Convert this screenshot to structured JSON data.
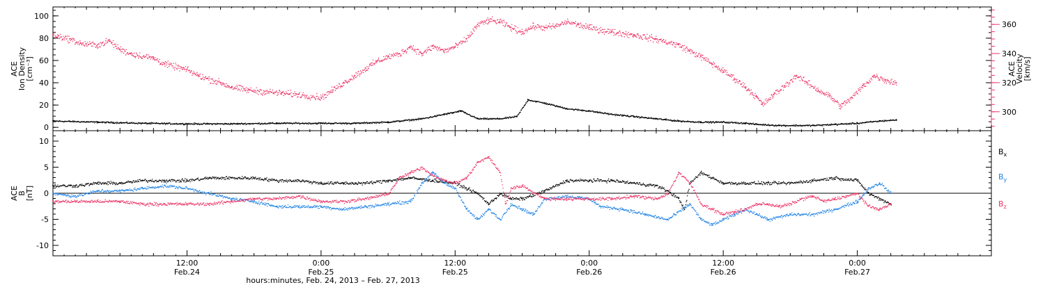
{
  "figure": {
    "xlabel": "hours:minutes, Feb. 24, 2013 – Feb. 27, 2013",
    "x_range_hours": [
      0,
      84
    ],
    "x_ticks": [
      {
        "hour": 12,
        "time": "12:00",
        "date": "Feb.24"
      },
      {
        "hour": 24,
        "time": "0:00",
        "date": "Feb.25"
      },
      {
        "hour": 36,
        "time": "12:00",
        "date": "Feb.25"
      },
      {
        "hour": 48,
        "time": "0:00",
        "date": "Feb.26"
      },
      {
        "hour": 60,
        "time": "12:00",
        "date": "Feb.26"
      },
      {
        "hour": 72,
        "time": "0:00",
        "date": "Feb.27"
      }
    ],
    "colors": {
      "black": "#000000",
      "blue": "#1e82e6",
      "red": "#eb3264"
    }
  },
  "chart_data": [
    {
      "type": "scatter",
      "panel": "plasma",
      "ylabel": [
        "ACE",
        "Ion Density",
        "[cm⁻³]"
      ],
      "ylim": [
        -3,
        108
      ],
      "yticks": [
        0,
        20,
        40,
        60,
        80,
        100
      ],
      "y2label": [
        "ACE",
        "Velocity",
        "[km/s]"
      ],
      "y2lim": [
        287,
        372
      ],
      "y2ticks": [
        300,
        320,
        340,
        360
      ],
      "series": [
        {
          "axis": "left",
          "color": "black",
          "points": [
            [
              0,
              6
            ],
            [
              4,
              5
            ],
            [
              8,
              4
            ],
            [
              12,
              3.5
            ],
            [
              16,
              3.5
            ],
            [
              20,
              4
            ],
            [
              24,
              4
            ],
            [
              27,
              4
            ],
            [
              30,
              5
            ],
            [
              33,
              8
            ],
            [
              35,
              12
            ],
            [
              36.5,
              15
            ],
            [
              38,
              8
            ],
            [
              40,
              8
            ],
            [
              41.5,
              10
            ],
            [
              42.5,
              25
            ],
            [
              44,
              22
            ],
            [
              46,
              17
            ],
            [
              48,
              15
            ],
            [
              50,
              12
            ],
            [
              52,
              10
            ],
            [
              54,
              8
            ],
            [
              56,
              6
            ],
            [
              58,
              5
            ],
            [
              60,
              5
            ],
            [
              62,
              4
            ],
            [
              63,
              3
            ],
            [
              65,
              2
            ],
            [
              68,
              2
            ],
            [
              70,
              3
            ],
            [
              72,
              4
            ],
            [
              74,
              6
            ],
            [
              75.5,
              7
            ]
          ]
        },
        {
          "axis": "right",
          "color": "red",
          "points": [
            [
              0,
              353
            ],
            [
              1.5,
              350
            ],
            [
              2.5,
              347
            ],
            [
              4,
              346
            ],
            [
              5,
              349
            ],
            [
              6,
              343
            ],
            [
              7,
              340
            ],
            [
              9,
              337
            ],
            [
              10,
              333
            ],
            [
              12,
              329
            ],
            [
              13,
              325
            ],
            [
              15,
              320
            ],
            [
              16,
              317
            ],
            [
              17.5,
              315
            ],
            [
              19,
              314
            ],
            [
              20.5,
              313
            ],
            [
              22,
              312
            ],
            [
              24,
              310
            ],
            [
              25,
              315
            ],
            [
              26,
              320
            ],
            [
              27,
              325
            ],
            [
              28,
              330
            ],
            [
              29,
              335
            ],
            [
              30,
              338
            ],
            [
              31,
              340
            ],
            [
              32,
              345
            ],
            [
              33,
              340
            ],
            [
              34,
              345
            ],
            [
              35,
              342
            ],
            [
              36,
              345
            ],
            [
              37,
              350
            ],
            [
              38,
              360
            ],
            [
              39,
              363
            ],
            [
              40,
              362
            ],
            [
              41,
              358
            ],
            [
              42,
              355
            ],
            [
              43,
              359
            ],
            [
              44,
              358
            ],
            [
              45,
              359
            ],
            [
              46,
              362
            ],
            [
              47,
              360
            ],
            [
              48,
              358
            ],
            [
              50,
              355
            ],
            [
              52,
              353
            ],
            [
              54,
              350
            ],
            [
              56,
              346
            ],
            [
              57,
              342
            ],
            [
              58,
              338
            ],
            [
              59,
              333
            ],
            [
              60,
              328
            ],
            [
              61,
              323
            ],
            [
              62,
              317
            ],
            [
              63,
              310
            ],
            [
              63.5,
              305
            ],
            [
              64.5,
              312
            ],
            [
              65.5,
              318
            ],
            [
              66.5,
              325
            ],
            [
              67.5,
              320
            ],
            [
              68.5,
              315
            ],
            [
              69.5,
              311
            ],
            [
              70.5,
              304
            ],
            [
              71.5,
              310
            ],
            [
              72.5,
              318
            ],
            [
              73.5,
              325
            ],
            [
              74.5,
              322
            ],
            [
              75.5,
              320
            ]
          ]
        }
      ]
    },
    {
      "type": "scatter",
      "panel": "magnetic",
      "ylabel": [
        "ACE",
        "B",
        "[nT]"
      ],
      "ylim": [
        -12,
        12
      ],
      "yticks": [
        -10,
        -5,
        0,
        5,
        10
      ],
      "zero_line": true,
      "series": [
        {
          "name": "B",
          "sub": "x",
          "color": "black",
          "points": [
            [
              0,
              1.5
            ],
            [
              2,
              1.5
            ],
            [
              4,
              2
            ],
            [
              6,
              2
            ],
            [
              8,
              2.5
            ],
            [
              10,
              2.5
            ],
            [
              12,
              2.5
            ],
            [
              14,
              3
            ],
            [
              16,
              3
            ],
            [
              18,
              3
            ],
            [
              20,
              2.5
            ],
            [
              22,
              2.5
            ],
            [
              24,
              2
            ],
            [
              26,
              2
            ],
            [
              28,
              2
            ],
            [
              30,
              2.5
            ],
            [
              32,
              3
            ],
            [
              34,
              2.5
            ],
            [
              36,
              2
            ],
            [
              37,
              1
            ],
            [
              38,
              0
            ],
            [
              39,
              -2
            ],
            [
              40,
              0
            ],
            [
              41,
              -1
            ],
            [
              42,
              -1
            ],
            [
              44,
              0.5
            ],
            [
              46,
              2.5
            ],
            [
              48,
              2.5
            ],
            [
              50,
              2.5
            ],
            [
              52,
              2
            ],
            [
              54,
              1.5
            ],
            [
              55,
              0.5
            ],
            [
              56,
              -1
            ],
            [
              56.5,
              -3
            ],
            [
              57,
              2
            ],
            [
              58,
              4
            ],
            [
              59,
              3
            ],
            [
              60,
              2
            ],
            [
              62,
              2
            ],
            [
              64,
              2
            ],
            [
              66,
              2
            ],
            [
              68,
              2.5
            ],
            [
              70,
              3
            ],
            [
              72,
              2.5
            ],
            [
              73,
              0
            ],
            [
              74,
              -1
            ],
            [
              75,
              -2
            ]
          ]
        },
        {
          "name": "B",
          "sub": "y",
          "color": "blue",
          "points": [
            [
              0,
              0
            ],
            [
              2,
              -0.5
            ],
            [
              4,
              0.5
            ],
            [
              6,
              0.5
            ],
            [
              8,
              1
            ],
            [
              10,
              1.5
            ],
            [
              12,
              1
            ],
            [
              14,
              0
            ],
            [
              16,
              -1
            ],
            [
              18,
              -1.5
            ],
            [
              20,
              -2.5
            ],
            [
              22,
              -2.5
            ],
            [
              24,
              -2.5
            ],
            [
              26,
              -3
            ],
            [
              28,
              -2.5
            ],
            [
              30,
              -2
            ],
            [
              32,
              -1.5
            ],
            [
              33,
              2
            ],
            [
              34,
              4
            ],
            [
              35,
              2
            ],
            [
              36,
              1
            ],
            [
              37,
              -3
            ],
            [
              38,
              -5
            ],
            [
              39,
              -3
            ],
            [
              40,
              -5
            ],
            [
              41,
              -2
            ],
            [
              42,
              -3
            ],
            [
              43,
              -4
            ],
            [
              44,
              -1
            ],
            [
              46,
              -0.5
            ],
            [
              48,
              -1
            ],
            [
              49,
              -2.5
            ],
            [
              51,
              -3
            ],
            [
              53,
              -4
            ],
            [
              55,
              -5
            ],
            [
              57,
              -2
            ],
            [
              58,
              -5
            ],
            [
              59,
              -6
            ],
            [
              60,
              -5
            ],
            [
              61,
              -4
            ],
            [
              62,
              -3
            ],
            [
              63,
              -4
            ],
            [
              64,
              -5
            ],
            [
              66,
              -4
            ],
            [
              68,
              -4
            ],
            [
              70,
              -3
            ],
            [
              72,
              -1.5
            ],
            [
              73,
              1
            ],
            [
              74,
              2
            ],
            [
              75,
              0
            ]
          ]
        },
        {
          "name": "B",
          "sub": "z",
          "color": "red",
          "points": [
            [
              0,
              -1.5
            ],
            [
              2,
              -1.5
            ],
            [
              4,
              -1.5
            ],
            [
              6,
              -1.5
            ],
            [
              8,
              -2
            ],
            [
              10,
              -2
            ],
            [
              12,
              -2
            ],
            [
              14,
              -2
            ],
            [
              16,
              -1.5
            ],
            [
              18,
              -1
            ],
            [
              20,
              -1
            ],
            [
              22,
              -0.5
            ],
            [
              24,
              -1.5
            ],
            [
              26,
              -1.5
            ],
            [
              28,
              -1
            ],
            [
              30,
              0
            ],
            [
              31,
              3
            ],
            [
              32,
              4
            ],
            [
              33,
              5
            ],
            [
              34,
              3.5
            ],
            [
              35,
              2.5
            ],
            [
              36,
              2
            ],
            [
              37,
              3
            ],
            [
              38,
              6
            ],
            [
              39,
              7
            ],
            [
              40,
              4
            ],
            [
              40.5,
              -2
            ],
            [
              41,
              1
            ],
            [
              42,
              1.5
            ],
            [
              44,
              -1
            ],
            [
              46,
              -1
            ],
            [
              48,
              -1
            ],
            [
              50,
              -1
            ],
            [
              52,
              -0.5
            ],
            [
              54,
              -1
            ],
            [
              55,
              0
            ],
            [
              56,
              4
            ],
            [
              57,
              2
            ],
            [
              58,
              -2
            ],
            [
              59,
              -3
            ],
            [
              60,
              -4
            ],
            [
              61,
              -3.5
            ],
            [
              62,
              -3
            ],
            [
              63,
              -2
            ],
            [
              64,
              -2
            ],
            [
              65,
              -2.5
            ],
            [
              66,
              -2
            ],
            [
              67,
              -1
            ],
            [
              68,
              -0.5
            ],
            [
              69,
              -1.5
            ],
            [
              70,
              -1
            ],
            [
              71,
              -0.5
            ],
            [
              72,
              0
            ],
            [
              73,
              -2.5
            ],
            [
              74,
              -3
            ],
            [
              75,
              -2
            ]
          ]
        }
      ]
    }
  ]
}
